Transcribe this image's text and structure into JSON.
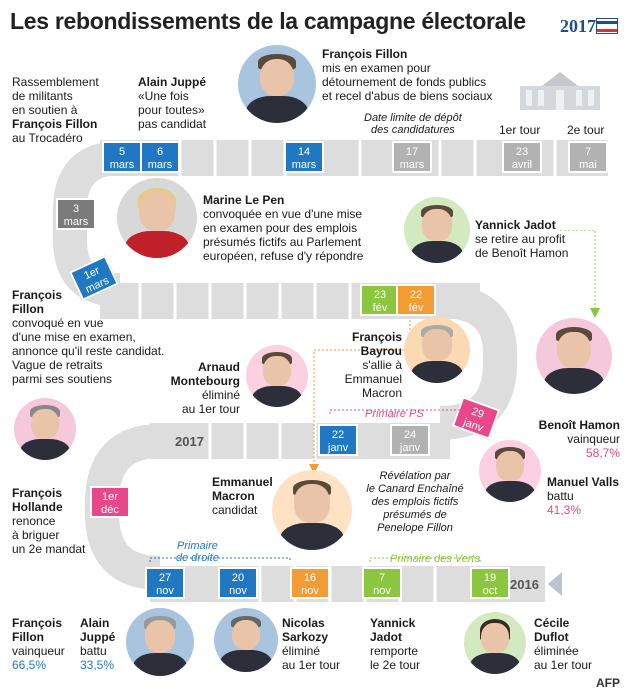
{
  "title": "Les rebondissements de la campagne électorale",
  "logo": {
    "year": "2017"
  },
  "colors": {
    "blue": "#1f78c1",
    "pink": "#e8488a",
    "green": "#8cc63f",
    "orange": "#f39c33",
    "grey": "#b2b2b2"
  },
  "dates": {
    "d5mars": "5\nmars",
    "d6mars": "6\nmars",
    "d14mars": "14\nmars",
    "d17mars": "17\nmars",
    "d23avril": "23\navril",
    "d7mai": "7\nmai",
    "d3mars": "3\nmars",
    "d1mars": "1er\nmars",
    "d23fev": "23\nfév",
    "d22fev": "22\nfév",
    "d29janv": "29\njanv",
    "d24janv": "24\njanv",
    "d22janv": "22\njanv",
    "d1dec": "1er\ndéc",
    "d27nov": "27\nnov",
    "d20nov": "20\nnov",
    "d16nov": "16\nnov",
    "d7nov": "7\nnov",
    "d19oct": "19\noct"
  },
  "labels": {
    "date_limite": "Date limite de dépôt\ndes candidatures",
    "tour1": "1er tour",
    "tour2": "2e tour",
    "year2017": "2017",
    "year2016": "2016",
    "primaire_ps": "Primaire PS",
    "primaire_droite": "Primaire\nde droite",
    "primaire_verts": "Primaire des Verts"
  },
  "events": {
    "trocadero": {
      "text1": "Rassemblement\nde militants\nen soutien à",
      "name": "François Fillon",
      "text2": "au Trocadéro"
    },
    "juppe": {
      "name": "Alain Juppé",
      "text": "«Une fois\npour toutes»\npas candidat"
    },
    "fillon_examen": {
      "name": "François Fillon",
      "text": "mis en examen pour\ndétournement de fonds publics\net recel d'abus de biens sociaux"
    },
    "lepen": {
      "name": "Marine Le Pen",
      "text": "convoquée en vue d'une mise\nen examen pour des emplois\nprésumés fictifs au Parlement\neuropéen, refuse d'y répondre"
    },
    "jadot": {
      "name": "Yannick Jadot",
      "text": "se retire au profit\nde Benoît Hamon"
    },
    "fillon_convoque": {
      "name": "François\nFillon",
      "text": "convoqué en vue\nd'une mise en examen,\nannonce qu'il reste candidat.\nVague de retraits\nparmi ses soutiens"
    },
    "bayrou": {
      "name": "François\nBayrou",
      "text": "s'allie à\nEmmanuel\nMacron"
    },
    "montebourg": {
      "name": "Arnaud\nMontebourg",
      "text": "éliminé\nau 1er tour"
    },
    "hamon": {
      "name": "Benoît Hamon",
      "text": "vainqueur",
      "pct": "58,7%"
    },
    "hollande": {
      "name": "François\nHollande",
      "text": "renonce\nà briguer\nun 2e mandat"
    },
    "macron": {
      "name": "Emmanuel\nMacron",
      "text": "candidat"
    },
    "canard": {
      "text": "Révélation par\nle Canard Enchaîné\ndes emplois fictifs\nprésumés de\nPenelope Fillon"
    },
    "valls": {
      "name": "Manuel Valls",
      "text": "battu",
      "pct": "41,3%"
    },
    "fillon_vainqueur": {
      "name": "François\nFillon",
      "text": "vainqueur",
      "pct": "66,5%"
    },
    "juppe_battu": {
      "name": "Alain\nJuppé",
      "text": "battu",
      "pct": "33,5%"
    },
    "sarkozy": {
      "name": "Nicolas\nSarkozy",
      "text": "éliminé\nau 1er tour"
    },
    "jadot_remporte": {
      "name": "Yannick\nJadot",
      "text": "remporte\nle 2e tour"
    },
    "duflot": {
      "name": "Cécile\nDuflot",
      "text": "éliminée\nau 1er tour"
    }
  },
  "credit": "AFP"
}
